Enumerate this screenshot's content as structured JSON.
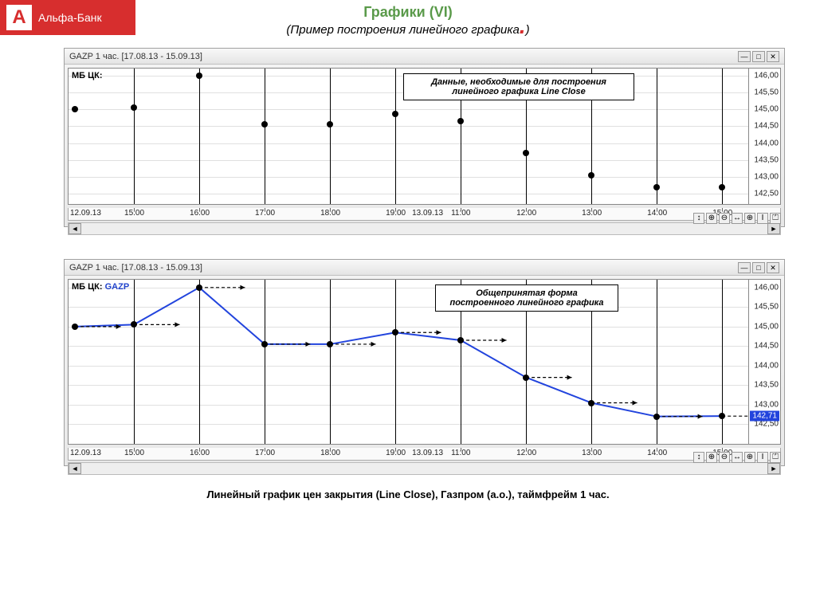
{
  "logo": {
    "letter": "А",
    "text": "Альфа-Банк"
  },
  "main_title": "Графики (VI)",
  "subtitle": "(Пример построения линейного графика",
  "subtitle_dot": ".",
  "subtitle_close": ")",
  "caption": "Линейный график цен закрытия (Line Close), Газпром (а.о.), таймфрейм 1 час.",
  "colors": {
    "logo_bg": "#d72e2e",
    "title_green": "#5a9a4a",
    "line_blue": "#2244dd",
    "grid": "#e0e0e0",
    "axis": "#888888",
    "vgrid": "#000000"
  },
  "chart1": {
    "titlebar": "GAZP  1 час. [17.08.13 - 15.09.13]",
    "label": "МБ ЦК:",
    "annotation": "Данные, необходимые для построения линейного графика Line Close",
    "type": "scatter",
    "ylim": [
      142.2,
      146.2
    ],
    "yticks": [
      142.5,
      143.0,
      143.5,
      144.0,
      144.5,
      145.0,
      145.5,
      146.0
    ],
    "ytick_labels": [
      "142,50",
      "143,00",
      "143,50",
      "144,00",
      "144,50",
      "145,00",
      "145,50",
      "146,00"
    ],
    "xticks_idx": [
      1,
      2,
      3,
      4,
      5,
      6,
      7,
      8,
      9,
      10
    ],
    "xticks": [
      "15:00",
      "16:00",
      "17:00",
      "18:00",
      "19:00",
      "11:00",
      "12:00",
      "13:00",
      "14:00",
      "15:00"
    ],
    "x_date_left": "12.09.13",
    "x_date_mid": "13.09.13",
    "x_date_mid_idx": 5.5,
    "points": [
      {
        "x": 0.1,
        "y": 145.0
      },
      {
        "x": 1,
        "y": 145.05
      },
      {
        "x": 2,
        "y": 146.0
      },
      {
        "x": 3,
        "y": 144.55
      },
      {
        "x": 4,
        "y": 144.55
      },
      {
        "x": 5,
        "y": 144.85
      },
      {
        "x": 6,
        "y": 144.65
      },
      {
        "x": 7,
        "y": 143.7
      },
      {
        "x": 8,
        "y": 143.05
      },
      {
        "x": 9,
        "y": 142.7
      },
      {
        "x": 10,
        "y": 142.7
      }
    ]
  },
  "chart2": {
    "titlebar": "GAZP  1 час. [17.08.13 - 15.09.13]",
    "label": "МБ ЦК:",
    "ticker": "GAZP",
    "annotation": "Общепринятая форма построенного  линейного графика",
    "type": "line",
    "ylim": [
      142.0,
      146.2
    ],
    "yticks": [
      142.5,
      143.0,
      143.5,
      144.0,
      144.5,
      145.0,
      145.5,
      146.0
    ],
    "ytick_labels": [
      "142,50",
      "143,00",
      "143,50",
      "144,00",
      "144,50",
      "145,00",
      "145,50",
      "146,00"
    ],
    "xticks_idx": [
      1,
      2,
      3,
      4,
      5,
      6,
      7,
      8,
      9,
      10
    ],
    "xticks": [
      "15:00",
      "16:00",
      "17:00",
      "18:00",
      "19:00",
      "11:00",
      "12:00",
      "13:00",
      "14:00",
      "15:00"
    ],
    "x_date_left": "12.09.13",
    "x_date_mid": "13.09.13",
    "x_date_mid_idx": 5.5,
    "price_badge": "142,71",
    "line_color": "#2244dd",
    "line_width": 2,
    "points": [
      {
        "x": 0.1,
        "y": 145.0
      },
      {
        "x": 1,
        "y": 145.05
      },
      {
        "x": 2,
        "y": 146.0
      },
      {
        "x": 3,
        "y": 144.55
      },
      {
        "x": 4,
        "y": 144.55
      },
      {
        "x": 5,
        "y": 144.85
      },
      {
        "x": 6,
        "y": 144.65
      },
      {
        "x": 7,
        "y": 143.7
      },
      {
        "x": 8,
        "y": 143.05
      },
      {
        "x": 9,
        "y": 142.7
      },
      {
        "x": 10,
        "y": 142.71
      }
    ],
    "arrow_length": 0.7
  },
  "window_buttons": {
    "min": "—",
    "max": "□",
    "close": "✕"
  },
  "tools": [
    "↕",
    "⊕",
    "⊖",
    "↔",
    "⊕",
    "I",
    "⏍"
  ]
}
